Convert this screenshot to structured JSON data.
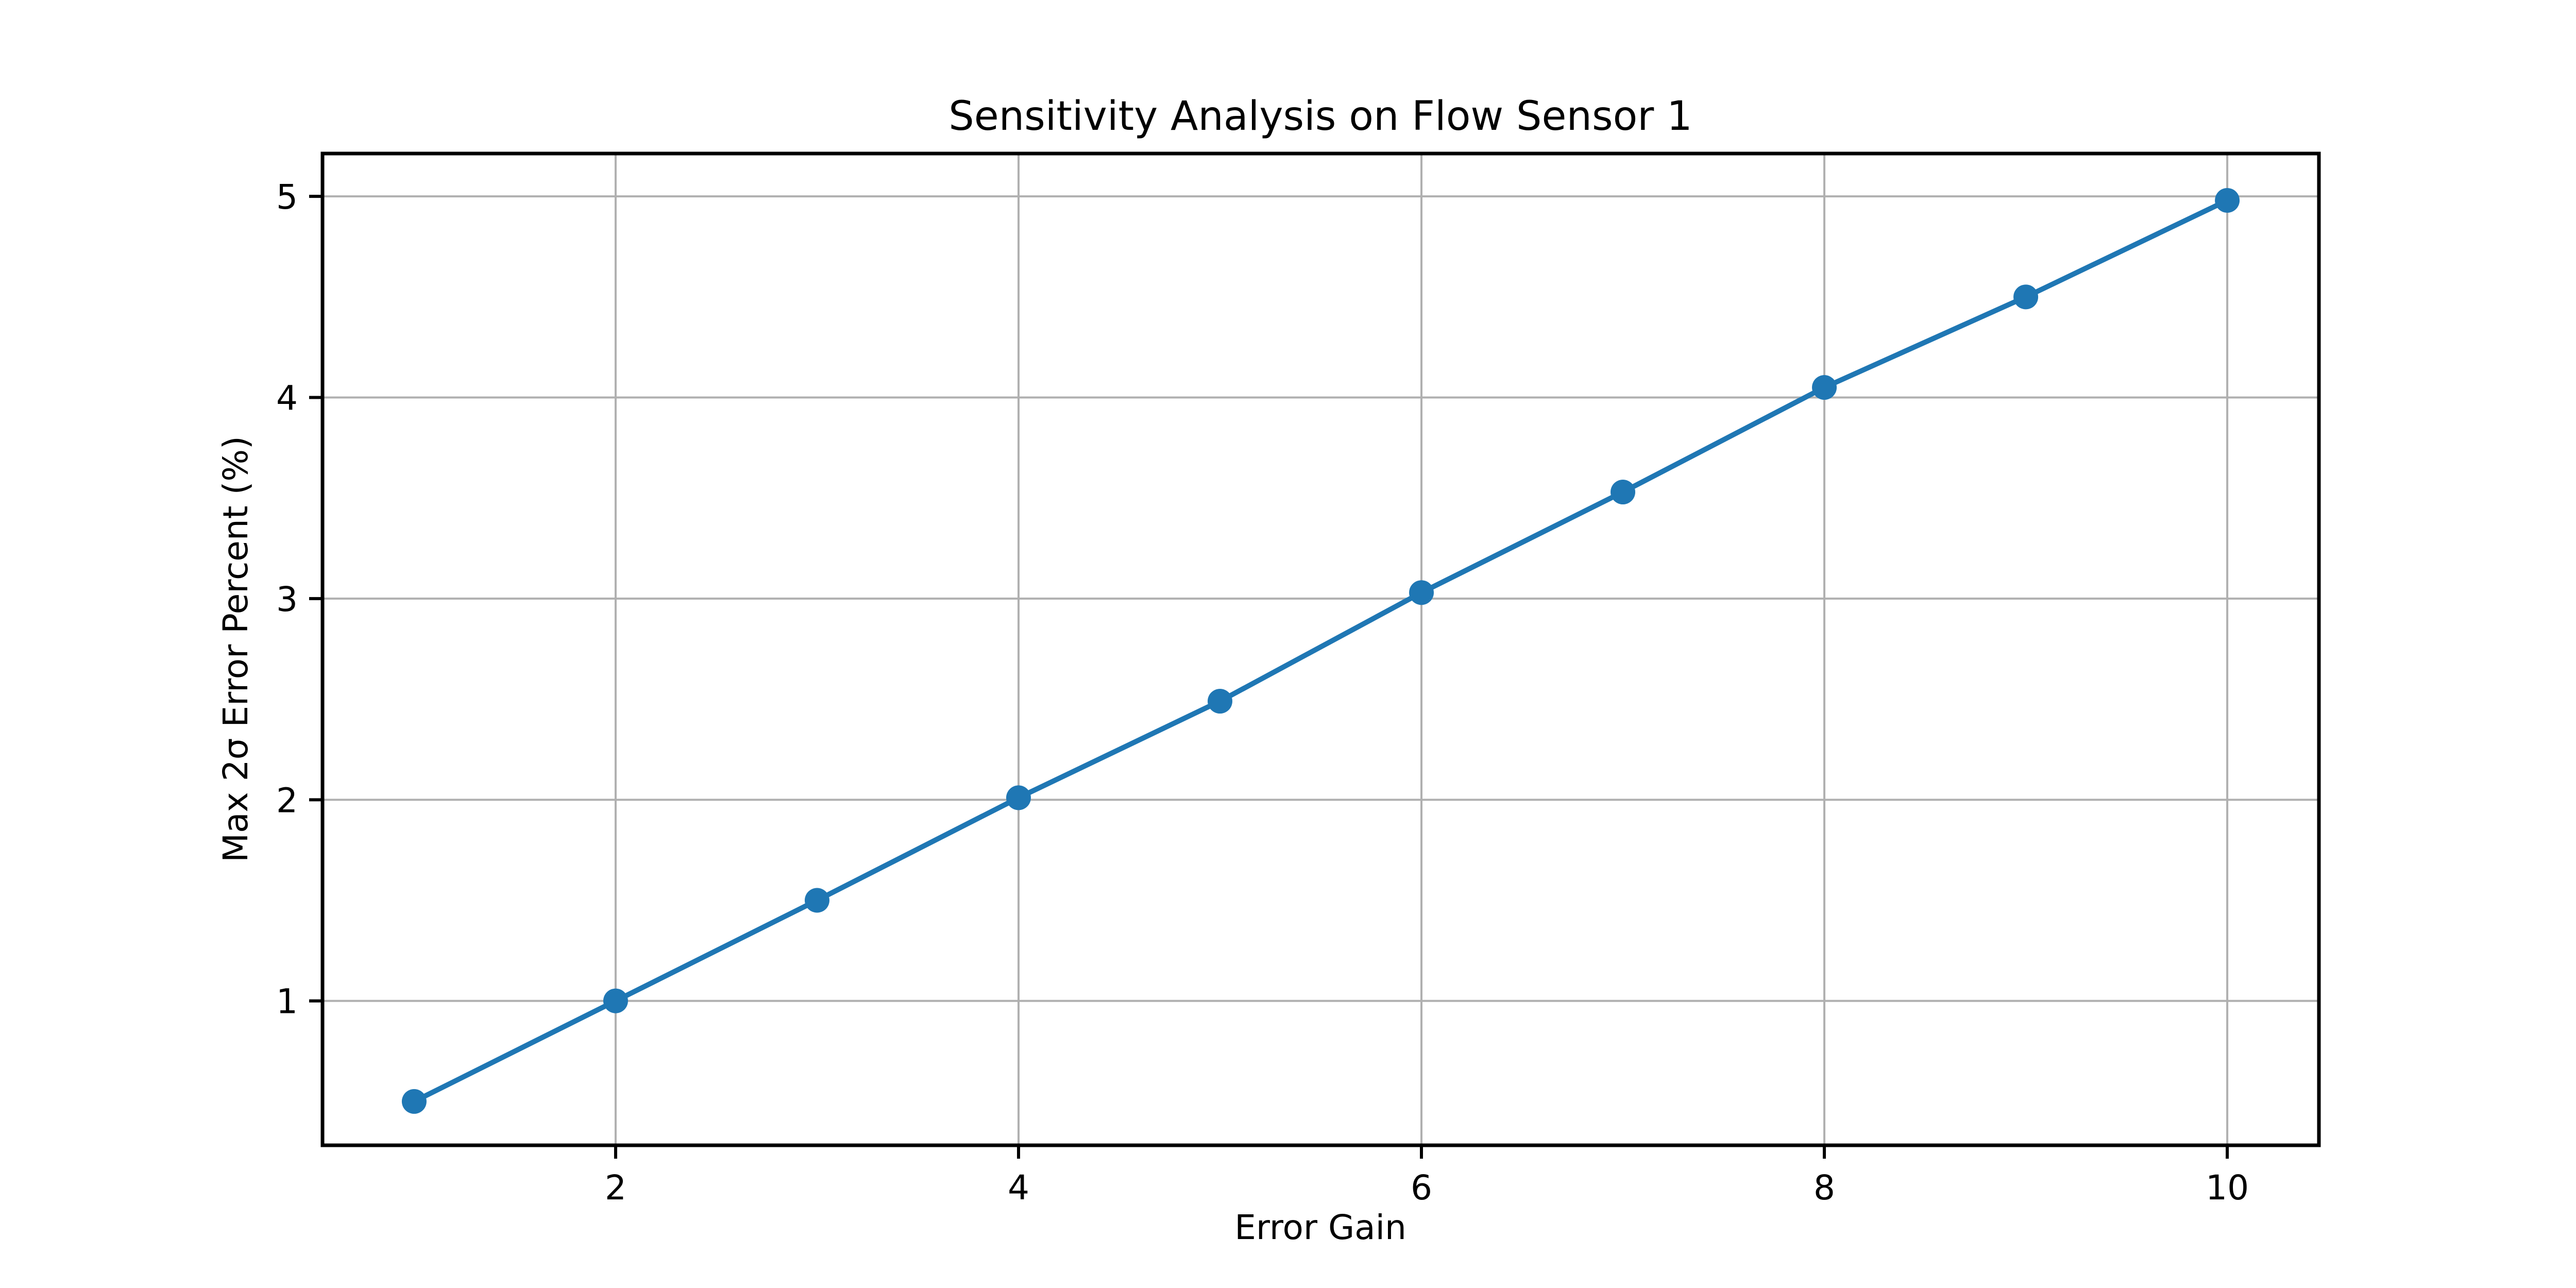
{
  "figure": {
    "background": "#ffffff"
  },
  "chart_data": {
    "type": "line",
    "title": "Sensitivity Analysis on Flow Sensor 1",
    "xlabel": "Error Gain",
    "ylabel": "Max 2σ Error Percent (%)",
    "x": [
      1,
      2,
      3,
      4,
      5,
      6,
      7,
      8,
      9,
      10
    ],
    "y": [
      0.5,
      1.0,
      1.5,
      2.01,
      2.49,
      3.03,
      3.53,
      4.05,
      4.5,
      4.98
    ],
    "xticks": [
      2,
      4,
      6,
      8,
      10
    ],
    "yticks": [
      1,
      2,
      3,
      4,
      5
    ],
    "xtick_labels": [
      "2",
      "4",
      "6",
      "8",
      "10"
    ],
    "ytick_labels": [
      "1",
      "2",
      "3",
      "4",
      "5"
    ],
    "xlim": [
      0.545,
      10.455
    ],
    "ylim": [
      0.282,
      5.213
    ],
    "grid": true,
    "legend": "none",
    "line_color": "#1f77b4",
    "marker": "circle",
    "marker_color": "#1f77b4",
    "grid_color": "#b0b0b0",
    "spine_color": "#000000",
    "tick_color": "#000000",
    "text_color": "#000000"
  }
}
